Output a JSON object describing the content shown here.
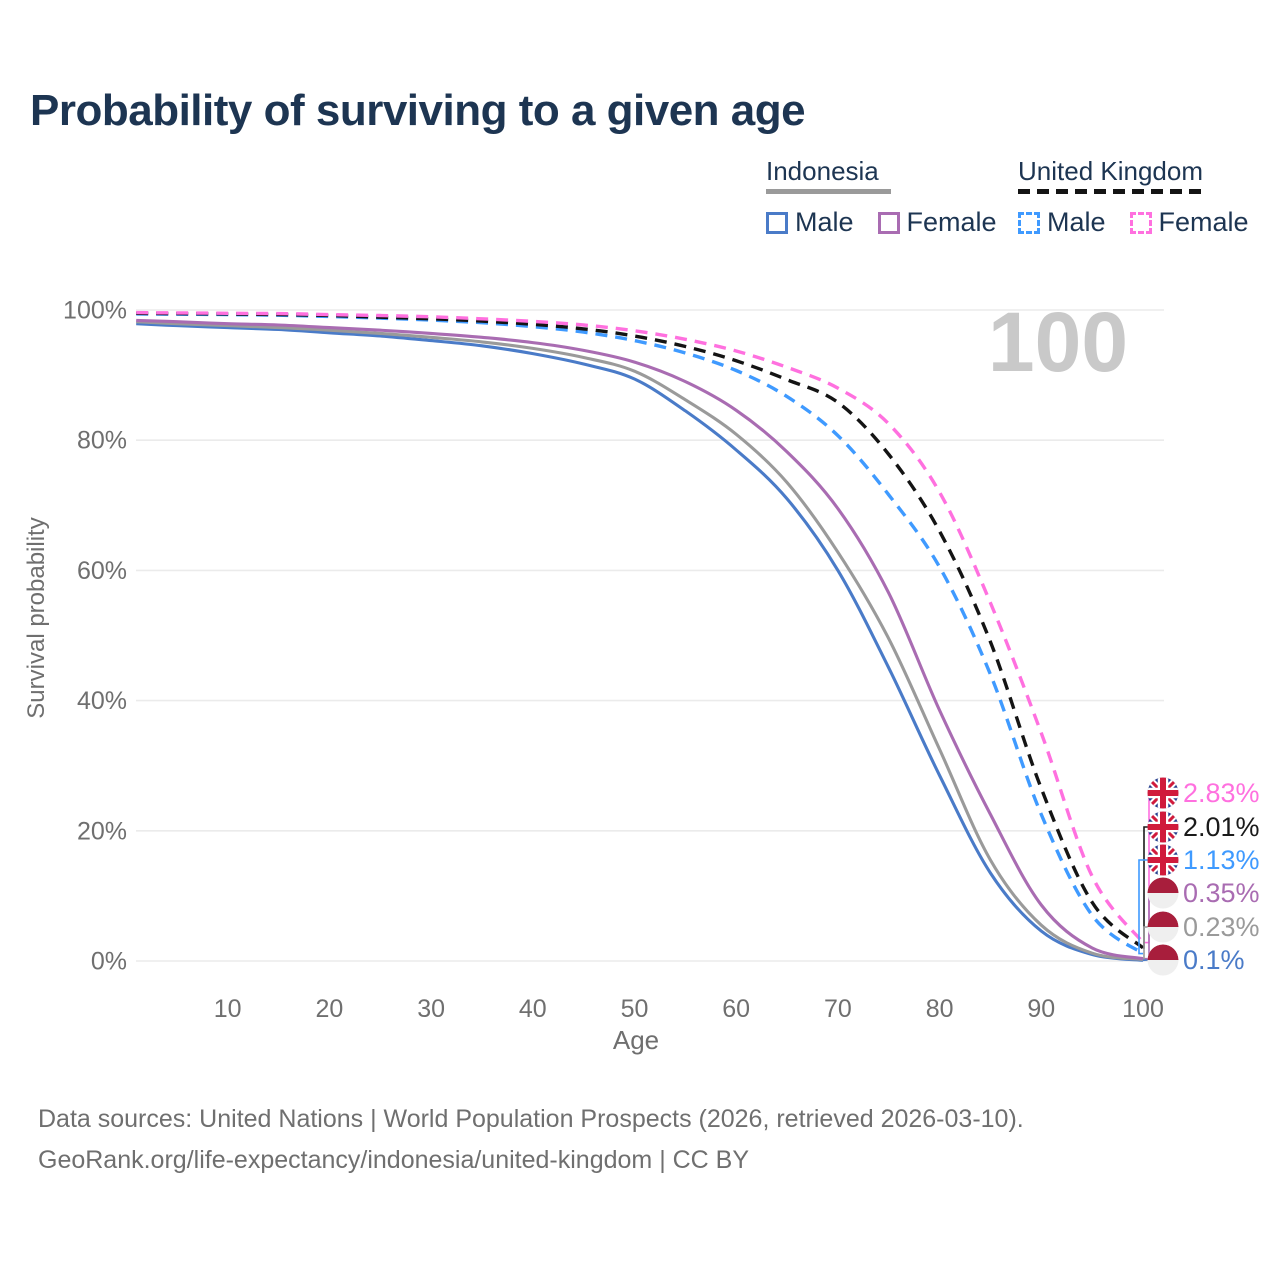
{
  "title": "Probability of surviving to a given age",
  "legend": {
    "groups": [
      {
        "label": "Indonesia",
        "underline_style": "solid",
        "underline_color": "#9a9a9a",
        "items": [
          {
            "label": "Male",
            "color": "#4a7bc8",
            "dash": false
          },
          {
            "label": "Female",
            "color": "#a96cb2",
            "dash": false
          }
        ]
      },
      {
        "label": "United Kingdom",
        "underline_style": "dashed",
        "underline_color": "#141414",
        "items": [
          {
            "label": "Male",
            "color": "#3f9aff",
            "dash": true
          },
          {
            "label": "Female",
            "color": "#ff70df",
            "dash": true
          }
        ]
      }
    ]
  },
  "chart_data": {
    "type": "line",
    "title": "Probability of surviving to a given age",
    "xlabel": "Age",
    "ylabel": "Survival probability",
    "xlim": [
      0,
      101
    ],
    "ylim": [
      0,
      100
    ],
    "grid": "horizontal",
    "age_marker": "100",
    "x_ticks": [
      10,
      20,
      30,
      40,
      50,
      60,
      70,
      80,
      90,
      100
    ],
    "y_ticks": [
      {
        "value": 0,
        "label": "0%"
      },
      {
        "value": 20,
        "label": "20%"
      },
      {
        "value": 40,
        "label": "40%"
      },
      {
        "value": 60,
        "label": "60%"
      },
      {
        "value": 80,
        "label": "80%"
      },
      {
        "value": 100,
        "label": "100%"
      }
    ],
    "x": [
      1,
      5,
      10,
      15,
      20,
      25,
      30,
      35,
      40,
      45,
      50,
      55,
      60,
      65,
      70,
      75,
      80,
      85,
      90,
      95,
      100
    ],
    "series": [
      {
        "id": "id_male",
        "name": "Indonesia Male",
        "color": "#4a7bc8",
        "dash": false,
        "values": [
          97.9,
          97.6,
          97.3,
          97.0,
          96.5,
          96.0,
          95.3,
          94.5,
          93.3,
          91.7,
          89.4,
          84.5,
          78.5,
          71.0,
          60.0,
          45.0,
          28.5,
          13.5,
          4.6,
          1.0,
          0.1
        ]
      },
      {
        "id": "id_both",
        "name": "Indonesia Both sexes",
        "color": "#9a9a9a",
        "dash": false,
        "values": [
          98.2,
          97.9,
          97.6,
          97.3,
          96.9,
          96.4,
          95.8,
          95.1,
          94.1,
          92.7,
          90.6,
          86.2,
          80.9,
          73.5,
          62.8,
          49.5,
          32.5,
          15.5,
          5.5,
          1.2,
          0.23
        ]
      },
      {
        "id": "id_female",
        "name": "Indonesia Female",
        "color": "#a96cb2",
        "dash": false,
        "values": [
          98.4,
          98.2,
          97.9,
          97.7,
          97.3,
          96.9,
          96.4,
          95.8,
          95.0,
          93.8,
          92.0,
          89.0,
          84.6,
          78.2,
          69.5,
          56.5,
          38.5,
          22.5,
          8.6,
          2.0,
          0.35
        ]
      },
      {
        "id": "uk_male",
        "name": "United Kingdom Male",
        "color": "#3f9aff",
        "dash": true,
        "values": [
          99.4,
          99.35,
          99.3,
          99.2,
          99.0,
          98.75,
          98.45,
          98.05,
          97.45,
          96.6,
          95.3,
          93.4,
          90.7,
          86.7,
          80.7,
          71.6,
          60.5,
          44.0,
          22.5,
          7.0,
          1.13
        ]
      },
      {
        "id": "uk_both",
        "name": "United Kingdom Both sexes",
        "color": "#141414",
        "dash": true,
        "values": [
          99.5,
          99.45,
          99.4,
          99.3,
          99.15,
          98.9,
          98.65,
          98.3,
          97.8,
          97.1,
          96.0,
          94.4,
          92.2,
          89.3,
          85.8,
          77.8,
          66.0,
          49.0,
          26.5,
          9.0,
          2.01
        ]
      },
      {
        "id": "uk_female",
        "name": "United Kingdom Female",
        "color": "#ff70df",
        "dash": true,
        "values": [
          99.6,
          99.55,
          99.5,
          99.45,
          99.3,
          99.15,
          98.95,
          98.65,
          98.25,
          97.7,
          96.8,
          95.5,
          93.7,
          91.2,
          88.0,
          82.5,
          72.0,
          55.0,
          35.0,
          13.0,
          2.83
        ]
      }
    ],
    "end_labels": [
      {
        "flag": "uk",
        "series": "uk_female",
        "label": "2.83%",
        "value": 2.83,
        "color": "#ff70df"
      },
      {
        "flag": "uk",
        "series": "uk_both",
        "label": "2.01%",
        "value": 2.01,
        "color": "#1a1a1a"
      },
      {
        "flag": "uk",
        "series": "uk_male",
        "label": "1.13%",
        "value": 1.13,
        "color": "#3f9aff"
      },
      {
        "flag": "id",
        "series": "id_female",
        "label": "0.35%",
        "value": 0.35,
        "color": "#a96cb2"
      },
      {
        "flag": "id",
        "series": "id_both",
        "label": "0.23%",
        "value": 0.23,
        "color": "#9a9a9a"
      },
      {
        "flag": "id",
        "series": "id_male",
        "label": "0.1%",
        "value": 0.1,
        "color": "#4a7bc8"
      }
    ]
  },
  "colors": {
    "title_text": "#1d3552",
    "axis_text": "#6f6f6f",
    "gridline": "#ebebeb",
    "age_marker": "#c9c9c9",
    "indonesia_flag_red": "#a81e3c",
    "uk_flag_blue": "#28418f",
    "uk_flag_red": "#d01b3c"
  },
  "footer": {
    "line1": "Data sources: United Nations | World Population Prospects (2026, retrieved 2026-03-10).",
    "line2": "GeoRank.org/life-expectancy/indonesia/united-kingdom | CC BY"
  }
}
